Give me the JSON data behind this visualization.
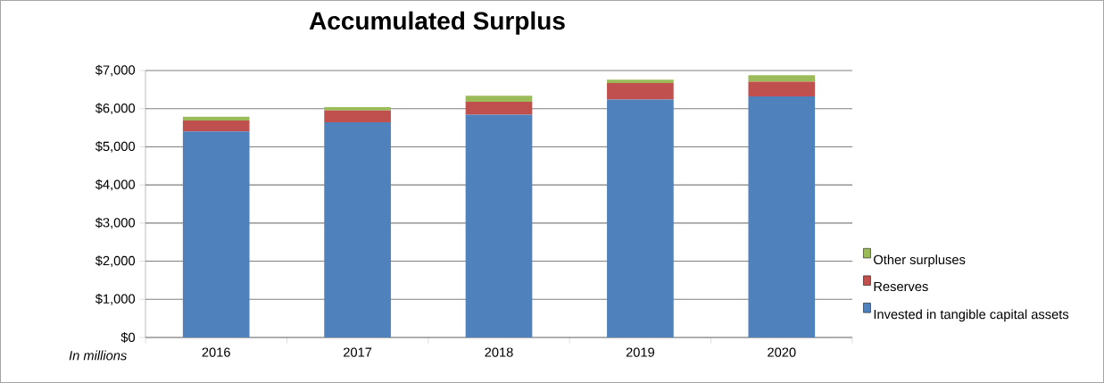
{
  "chart_data": {
    "type": "bar",
    "title": "Accumulated Surplus",
    "stacked": true,
    "categories": [
      "2016",
      "2017",
      "2018",
      "2019",
      "2020"
    ],
    "series": [
      {
        "name": "Invested in tangible capital assets",
        "color": "#4f81bd",
        "values": [
          5400,
          5640,
          5840,
          6240,
          6320
        ]
      },
      {
        "name": "Reserves",
        "color": "#c0504d",
        "values": [
          290,
          310,
          340,
          430,
          390
        ]
      },
      {
        "name": "Other surpluses",
        "color": "#9bbb59",
        "values": [
          100,
          90,
          160,
          90,
          170
        ]
      }
    ],
    "ylim": [
      0,
      7000
    ],
    "yticks": [
      {
        "value": 0,
        "label": "$0"
      },
      {
        "value": 1000,
        "label": "$1,000"
      },
      {
        "value": 2000,
        "label": "$2,000"
      },
      {
        "value": 3000,
        "label": "$3,000"
      },
      {
        "value": 4000,
        "label": "$4,000"
      },
      {
        "value": 5000,
        "label": "$5,000"
      },
      {
        "value": 6000,
        "label": "$6,000"
      },
      {
        "value": 7000,
        "label": "$7,000"
      }
    ],
    "grid": "y",
    "legend": "right",
    "annotations": [
      "In millions"
    ]
  }
}
